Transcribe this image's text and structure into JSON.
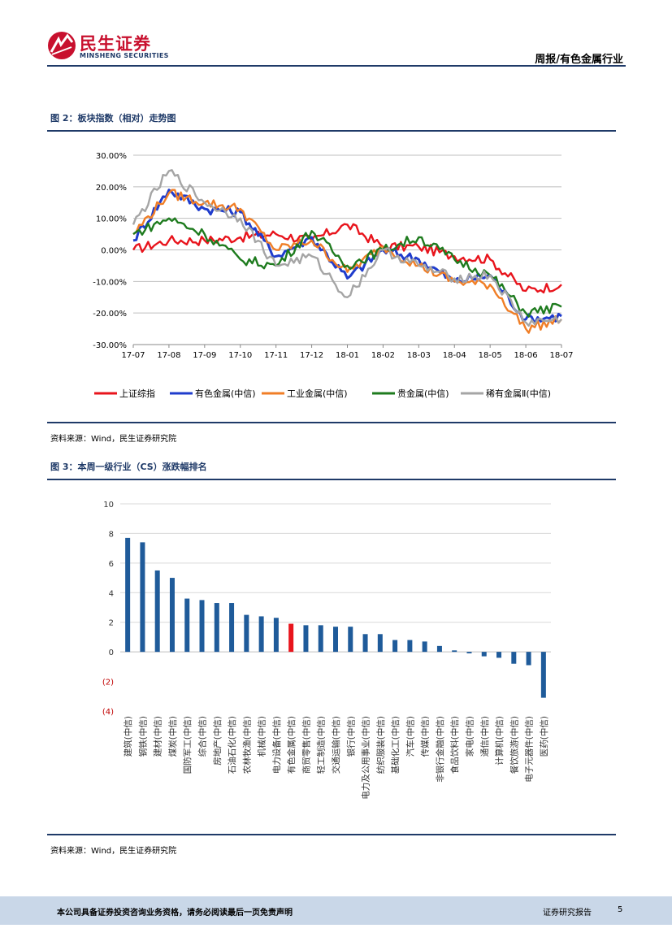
{
  "header": {
    "logo_cn": "民生证券",
    "logo_en": "MINSHENG SECURITIES",
    "title": "周报/有色金属行业"
  },
  "figure2": {
    "title": "图 2：板块指数（相对）走势图",
    "source": "资料来源：Wind，民生证券研究院"
  },
  "figure3": {
    "title": "图 3：本周一级行业（CS）涨跌幅排名",
    "source": "资料来源：Wind，民生证券研究院"
  },
  "footer": {
    "disclaimer": "本公司具备证券投资咨询业务资格，请务必阅读最后一页免责声明",
    "label": "证券研究报告",
    "page": "5"
  },
  "colors": {
    "brand_red": "#c8102e",
    "navy": "#1f3a68",
    "bar_blue": "#1f5b9a",
    "bar_highlight": "#e8141c",
    "neg_label": "#c00000"
  },
  "chart_data": [
    {
      "type": "line",
      "title": "",
      "x": [
        "17-07",
        "17-08",
        "17-09",
        "17-10",
        "17-11",
        "17-12",
        "18-01",
        "18-02",
        "18-03",
        "18-04",
        "18-05",
        "18-06",
        "18-07"
      ],
      "ylim": [
        -30,
        30
      ],
      "yticks": [
        "30.00%",
        "20.00%",
        "10.00%",
        "0.00%",
        "-10.00%",
        "-20.00%",
        "-30.00%"
      ],
      "grid": true,
      "legend_position": "bottom",
      "series": [
        {
          "name": "上证综指",
          "color": "#e8141c",
          "values": [
            0,
            3,
            3,
            4,
            5,
            3,
            8,
            1,
            1,
            -2,
            -3,
            -13,
            -11
          ]
        },
        {
          "name": "有色金属(中信)",
          "color": "#1f3ccc",
          "values": [
            3,
            19,
            13,
            12,
            -2,
            4,
            -9,
            0,
            -3,
            -10,
            -8,
            -22,
            -21
          ]
        },
        {
          "name": "工业金属(中信)",
          "color": "#f07e26",
          "values": [
            5,
            18,
            15,
            13,
            0,
            3,
            -7,
            1,
            -5,
            -10,
            -11,
            -25,
            -22
          ]
        },
        {
          "name": "贵金属(中信)",
          "color": "#1e7b1e",
          "values": [
            5,
            10,
            5,
            -3,
            -5,
            6,
            -5,
            0,
            4,
            -3,
            -8,
            -20,
            -18
          ]
        },
        {
          "name": "稀有金属Ⅱ(中信)",
          "color": "#a5a5a5",
          "values": [
            8,
            25,
            15,
            10,
            -5,
            -2,
            -15,
            0,
            -5,
            -9,
            -8,
            -23,
            -22
          ]
        }
      ]
    },
    {
      "type": "bar",
      "title": "",
      "ylim": [
        -4,
        10
      ],
      "yticks": [
        "10",
        "8",
        "6",
        "4",
        "2",
        "0",
        "(2)",
        "(4)"
      ],
      "categories": [
        "建筑(中信)",
        "钢铁(中信)",
        "建材(中信)",
        "煤炭(中信)",
        "国防军工(中信)",
        "综合(中信)",
        "房地产(中信)",
        "石油石化(中信)",
        "农林牧渔(中信)",
        "机械(中信)",
        "电力设备(中信)",
        "有色金属(中信)",
        "商贸零售(中信)",
        "轻工制造(中信)",
        "交通运输(中信)",
        "银行(中信)",
        "电力及公用事业(中信)",
        "纺织服装(中信)",
        "基础化工(中信)",
        "汽车(中信)",
        "传媒(中信)",
        "非银行金融(中信)",
        "食品饮料(中信)",
        "家电(中信)",
        "通信(中信)",
        "计算机(中信)",
        "餐饮旅游(中信)",
        "电子元器件(中信)",
        "医药(中信)"
      ],
      "values": [
        7.7,
        7.4,
        5.5,
        5.0,
        3.6,
        3.5,
        3.3,
        3.3,
        2.5,
        2.4,
        2.3,
        1.9,
        1.8,
        1.8,
        1.7,
        1.7,
        1.2,
        1.2,
        0.8,
        0.8,
        0.7,
        0.4,
        0.1,
        -0.1,
        -0.3,
        -0.4,
        -0.8,
        -0.9,
        -3.1
      ],
      "highlight": "有色金属(中信)"
    }
  ]
}
